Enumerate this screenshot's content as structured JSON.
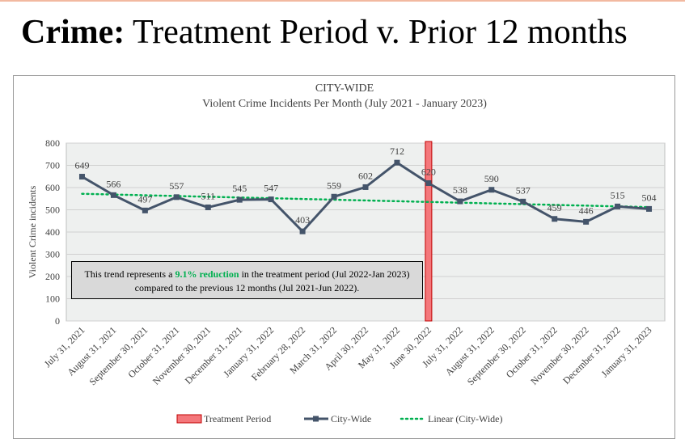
{
  "header": {
    "title_bold": "Crime:",
    "title_rest": "Treatment Period v. Prior 12 months"
  },
  "chart_data": {
    "type": "line",
    "title": "CITY-WIDE",
    "subtitle": "Violent Crime Incidents Per Month (July 2021 - January 2023)",
    "y_label": "Violent Crime incidents",
    "categories": [
      "July 31, 2021",
      "August 31, 2021",
      "September 30, 2021",
      "October 31, 2021",
      "November 30, 2021",
      "December 31, 2021",
      "January 31, 2022",
      "February 28, 2022",
      "March 31, 2022",
      "April 30, 2022",
      "May 31, 2022",
      "June 30, 2022",
      "July 31, 2022",
      "August 31, 2022",
      "September 30, 2022",
      "October 31, 2022",
      "November 30, 2022",
      "December 31, 2022",
      "January 31, 2023"
    ],
    "series": [
      {
        "name": "City-Wide",
        "color": "#44546a",
        "values": [
          649,
          566,
          497,
          557,
          511,
          545,
          547,
          403,
          559,
          602,
          712,
          620,
          538,
          590,
          537,
          459,
          446,
          515,
          504
        ]
      }
    ],
    "trend": {
      "name": "Linear (City-Wide)",
      "color": "#00b050",
      "values": [
        572,
        512
      ]
    },
    "treatment_marker": {
      "name": "Treatment Period",
      "color": "#f4777b",
      "category": "June 30, 2022"
    },
    "annotation": {
      "before": "This trend represents a ",
      "highlight": "9.1% reduction",
      "after": " in the treatment period (Jul 2022-Jan 2023) compared to the previous 12 months (Jul 2021-Jun 2022)."
    },
    "ylim": [
      0,
      800
    ],
    "yticks": [
      0,
      100,
      200,
      300,
      400,
      500,
      600,
      700,
      800
    ],
    "grid": true
  }
}
